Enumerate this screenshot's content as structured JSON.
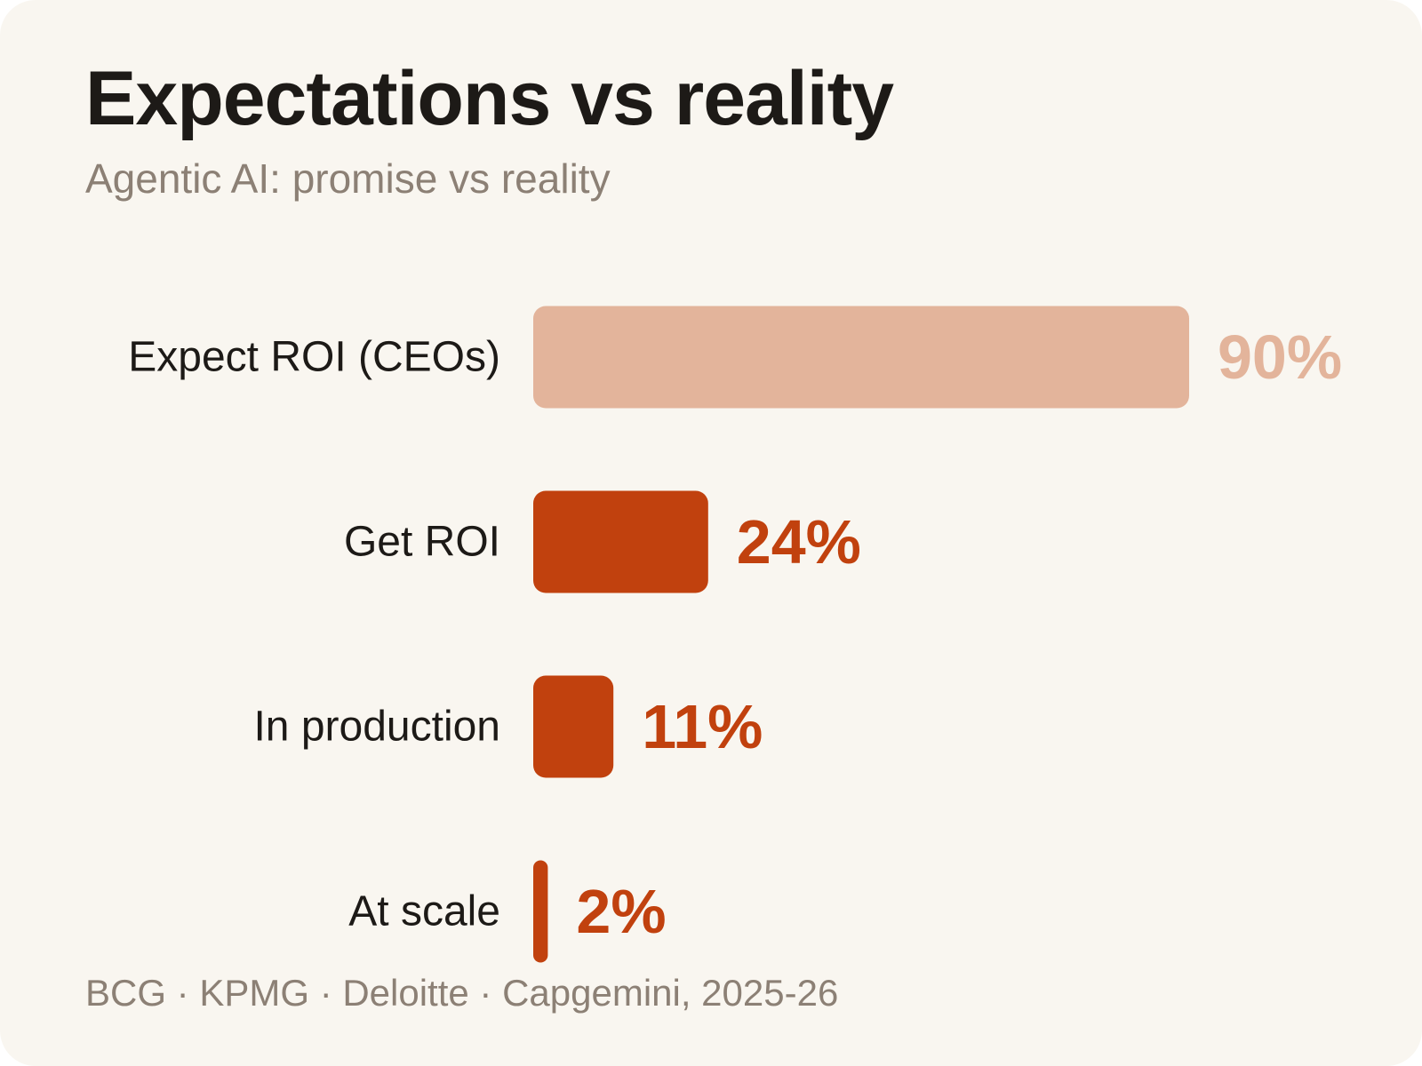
{
  "title": "Expectations vs reality",
  "subtitle": "Agentic AI: promise vs reality",
  "source": "BCG · KPMG · Deloitte · Capgemini, 2025-26",
  "colors": {
    "background": "#f9f6f0",
    "title": "#1d1a17",
    "muted_text": "#8c8075",
    "category_label": "#1d1a17",
    "accent": "#c1410e",
    "accent_light": "#e3b49b"
  },
  "chart_data": {
    "type": "bar",
    "orientation": "horizontal",
    "title": "Expectations vs reality",
    "subtitle": "Agentic AI: promise vs reality",
    "categories": [
      "Expect ROI (CEOs)",
      "Get ROI",
      "In production",
      "At scale"
    ],
    "values": [
      90,
      24,
      11,
      2
    ],
    "value_labels": [
      "90%",
      "24%",
      "11%",
      "2%"
    ],
    "unit": "%",
    "xlim": [
      0,
      90
    ],
    "bar_colors": [
      "#e3b49b",
      "#c1410e",
      "#c1410e",
      "#c1410e"
    ],
    "grid": false,
    "legend": "none",
    "xlabel": "",
    "ylabel": ""
  }
}
